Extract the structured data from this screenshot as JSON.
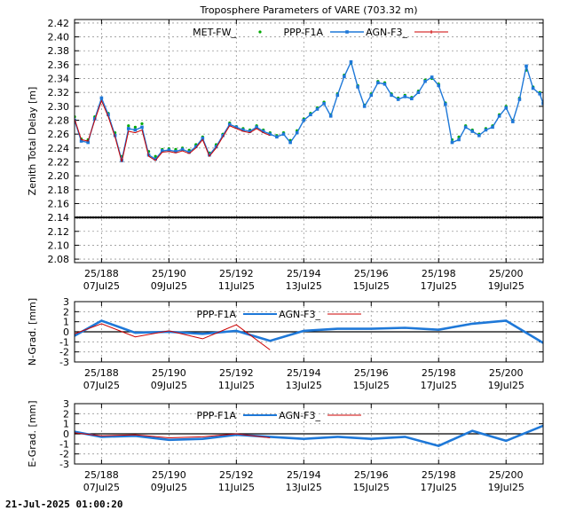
{
  "footer_text": "21-Jul-2025 01:00:20",
  "colors": {
    "met": "#00aa00",
    "ppp": "#1e78d8",
    "agn": "#cc0000",
    "zero_line": "#000000",
    "grid": "#999999"
  },
  "chart_data": [
    {
      "type": "line",
      "title": "Troposphere Parameters of VARE (703.32 m)",
      "ylabel": "Zenith Total Delay [m]",
      "xlabel": "",
      "xlim": [
        187.2,
        201.1
      ],
      "ylim": [
        2.075,
        2.425
      ],
      "yticks": [
        "2.42",
        "2.40",
        "2.38",
        "2.36",
        "2.34",
        "2.32",
        "2.30",
        "2.28",
        "2.26",
        "2.24",
        "2.22",
        "2.20",
        "2.18",
        "2.16",
        "2.14",
        "2.12",
        "2.10",
        "2.08"
      ],
      "xticks": [
        {
          "x": 188,
          "doy": "25/188",
          "date": "07Jul25"
        },
        {
          "x": 190,
          "doy": "25/190",
          "date": "09Jul25"
        },
        {
          "x": 192,
          "doy": "25/192",
          "date": "11Jul25"
        },
        {
          "x": 194,
          "doy": "25/194",
          "date": "13Jul25"
        },
        {
          "x": 196,
          "doy": "25/196",
          "date": "15Jul25"
        },
        {
          "x": 198,
          "doy": "25/198",
          "date": "17Jul25"
        },
        {
          "x": 200,
          "doy": "25/200",
          "date": "19Jul25"
        }
      ],
      "grid": true,
      "legend_position": "top",
      "series": [
        {
          "name": "MET-FW_",
          "style": "dots-green",
          "x": [
            187.2,
            187.4,
            187.6,
            187.8,
            188.0,
            188.2,
            188.4,
            188.6,
            188.8,
            189.0,
            189.2,
            189.4,
            189.6,
            189.8,
            190.0,
            190.2,
            190.4,
            190.6,
            190.8,
            191.0,
            191.2,
            191.4,
            191.6,
            191.8,
            192.0,
            192.2,
            192.4,
            192.6,
            192.8,
            193.0,
            193.2,
            193.4,
            193.6,
            193.8,
            194.0,
            194.2,
            194.4,
            194.6,
            194.8,
            195.0,
            195.2,
            195.4,
            195.6,
            195.8,
            196.0,
            196.2,
            196.4,
            196.6,
            196.8,
            197.0,
            197.2,
            197.4,
            197.6,
            197.8,
            198.0,
            198.2,
            198.4,
            198.6,
            198.8,
            199.0,
            199.2,
            199.4,
            199.6,
            199.8,
            200.0,
            200.2,
            200.4,
            200.6,
            200.8,
            201.0,
            201.1
          ],
          "y": [
            2.285,
            2.253,
            2.252,
            2.285,
            2.311,
            2.29,
            2.262,
            2.228,
            2.272,
            2.27,
            2.275,
            2.235,
            2.228,
            2.238,
            2.239,
            2.238,
            2.24,
            2.237,
            2.245,
            2.256,
            2.233,
            2.245,
            2.26,
            2.276,
            2.271,
            2.268,
            2.266,
            2.272,
            2.266,
            2.262,
            2.258,
            2.262,
            2.251,
            2.265,
            2.282,
            2.29,
            2.298,
            2.306,
            2.288,
            2.318,
            2.345,
            2.362,
            2.33,
            2.302,
            2.318,
            2.336,
            2.334,
            2.318,
            2.312,
            2.316,
            2.313,
            2.322,
            2.338,
            2.34,
            2.332,
            2.305,
            2.252,
            2.256,
            2.272,
            2.266,
            2.26,
            2.268,
            2.272,
            2.288,
            2.3,
            2.28,
            2.312,
            2.352,
            2.328,
            2.32,
            2.306
          ]
        },
        {
          "name": "PPP-F1A",
          "style": "line-blue",
          "x": [
            187.2,
            187.4,
            187.6,
            187.8,
            188.0,
            188.2,
            188.4,
            188.6,
            188.8,
            189.0,
            189.2,
            189.4,
            189.6,
            189.8,
            190.0,
            190.2,
            190.4,
            190.6,
            190.8,
            191.0,
            191.2,
            191.4,
            191.6,
            191.8,
            192.0,
            192.2,
            192.4,
            192.6,
            192.8,
            193.0,
            193.2,
            193.4,
            193.6,
            193.8,
            194.0,
            194.2,
            194.4,
            194.6,
            194.8,
            195.0,
            195.2,
            195.4,
            195.6,
            195.8,
            196.0,
            196.2,
            196.4,
            196.6,
            196.8,
            197.0,
            197.2,
            197.4,
            197.6,
            197.8,
            198.0,
            198.2,
            198.4,
            198.6,
            198.8,
            199.0,
            199.2,
            199.4,
            199.6,
            199.8,
            200.0,
            200.2,
            200.4,
            200.6,
            200.8,
            201.0,
            201.1
          ],
          "y": [
            2.28,
            2.25,
            2.248,
            2.282,
            2.312,
            2.288,
            2.258,
            2.222,
            2.268,
            2.266,
            2.27,
            2.23,
            2.224,
            2.236,
            2.237,
            2.235,
            2.238,
            2.234,
            2.242,
            2.254,
            2.23,
            2.242,
            2.258,
            2.274,
            2.27,
            2.266,
            2.264,
            2.27,
            2.264,
            2.26,
            2.256,
            2.26,
            2.248,
            2.262,
            2.28,
            2.288,
            2.296,
            2.304,
            2.286,
            2.316,
            2.343,
            2.364,
            2.328,
            2.3,
            2.316,
            2.334,
            2.332,
            2.316,
            2.31,
            2.314,
            2.311,
            2.32,
            2.336,
            2.342,
            2.33,
            2.303,
            2.248,
            2.252,
            2.27,
            2.264,
            2.258,
            2.266,
            2.27,
            2.286,
            2.298,
            2.278,
            2.31,
            2.358,
            2.326,
            2.318,
            2.304
          ]
        },
        {
          "name": "AGN-F3_",
          "style": "line-red",
          "x": [
            187.2,
            187.4,
            187.6,
            187.8,
            188.0,
            188.2,
            188.4,
            188.6,
            188.8,
            189.0,
            189.2,
            189.4,
            189.6,
            189.8,
            190.0,
            190.2,
            190.4,
            190.6,
            190.8,
            191.0,
            191.2,
            191.4,
            191.6,
            191.8,
            192.0,
            192.2,
            192.4,
            192.6,
            192.8,
            193.0
          ],
          "y": [
            2.282,
            2.252,
            2.25,
            2.28,
            2.308,
            2.285,
            2.256,
            2.22,
            2.264,
            2.262,
            2.266,
            2.228,
            2.222,
            2.234,
            2.235,
            2.233,
            2.236,
            2.232,
            2.24,
            2.252,
            2.228,
            2.24,
            2.256,
            2.272,
            2.268,
            2.264,
            2.262,
            2.268,
            2.262,
            2.258
          ]
        },
        {
          "name": "",
          "style": "flat-black",
          "x": [
            187.2,
            201.1
          ],
          "y": [
            2.14,
            2.14
          ]
        }
      ]
    },
    {
      "type": "line",
      "title": "",
      "ylabel": "N-Grad. [mm]",
      "xlabel": "",
      "xlim": [
        187.2,
        201.1
      ],
      "ylim": [
        -3,
        3
      ],
      "yticks": [
        "3",
        "2",
        "1",
        "0",
        "-1",
        "-2",
        "-3"
      ],
      "xticks": [
        {
          "x": 188,
          "doy": "25/188",
          "date": "07Jul25"
        },
        {
          "x": 190,
          "doy": "25/190",
          "date": "09Jul25"
        },
        {
          "x": 192,
          "doy": "25/192",
          "date": "11Jul25"
        },
        {
          "x": 194,
          "doy": "25/194",
          "date": "13Jul25"
        },
        {
          "x": 196,
          "doy": "25/196",
          "date": "15Jul25"
        },
        {
          "x": 198,
          "doy": "25/198",
          "date": "17Jul25"
        },
        {
          "x": 200,
          "doy": "25/200",
          "date": "19Jul25"
        }
      ],
      "grid": true,
      "legend_position": "top",
      "series": [
        {
          "name": "PPP-F1A",
          "style": "thick-blue",
          "x": [
            187.2,
            188.0,
            189.0,
            190.0,
            191.0,
            192.0,
            193.0,
            194.0,
            195.0,
            196.0,
            197.0,
            198.0,
            199.0,
            200.0,
            201.1
          ],
          "y": [
            -0.4,
            1.1,
            -0.1,
            0.0,
            -0.2,
            0.1,
            -0.9,
            0.1,
            0.3,
            0.3,
            0.4,
            0.2,
            0.8,
            1.1,
            -1.1
          ]
        },
        {
          "name": "AGN-F3_",
          "style": "thin-red",
          "x": [
            187.2,
            188.0,
            189.0,
            190.0,
            191.0,
            192.0,
            193.0
          ],
          "y": [
            -0.2,
            0.8,
            -0.5,
            0.1,
            -0.7,
            0.7,
            -1.8
          ]
        }
      ]
    },
    {
      "type": "line",
      "title": "",
      "ylabel": "E-Grad. [mm]",
      "xlabel": "",
      "xlim": [
        187.2,
        201.1
      ],
      "ylim": [
        -3,
        3
      ],
      "yticks": [
        "3",
        "2",
        "1",
        "0",
        "-1",
        "-2",
        "-3"
      ],
      "xticks": [
        {
          "x": 188,
          "doy": "25/188",
          "date": "07Jul25"
        },
        {
          "x": 190,
          "doy": "25/190",
          "date": "09Jul25"
        },
        {
          "x": 192,
          "doy": "25/192",
          "date": "11Jul25"
        },
        {
          "x": 194,
          "doy": "25/194",
          "date": "13Jul25"
        },
        {
          "x": 196,
          "doy": "25/196",
          "date": "15Jul25"
        },
        {
          "x": 198,
          "doy": "25/198",
          "date": "17Jul25"
        },
        {
          "x": 200,
          "doy": "25/200",
          "date": "19Jul25"
        }
      ],
      "grid": true,
      "legend_position": "top",
      "series": [
        {
          "name": "PPP-F1A",
          "style": "thick-blue",
          "x": [
            187.2,
            188.0,
            189.0,
            190.0,
            191.0,
            192.0,
            193.0,
            194.0,
            195.0,
            196.0,
            197.0,
            198.0,
            199.0,
            200.0,
            201.1
          ],
          "y": [
            0.2,
            -0.3,
            -0.2,
            -0.6,
            -0.5,
            -0.1,
            -0.3,
            -0.5,
            -0.3,
            -0.5,
            -0.3,
            -1.2,
            0.3,
            -0.7,
            0.8
          ]
        },
        {
          "name": "AGN-F3_",
          "style": "thin-red",
          "x": [
            187.2,
            188.0,
            189.0,
            190.0,
            191.0,
            192.0,
            193.0
          ],
          "y": [
            0.1,
            -0.2,
            -0.1,
            -0.4,
            -0.3,
            0.0,
            -0.4
          ]
        }
      ]
    }
  ]
}
